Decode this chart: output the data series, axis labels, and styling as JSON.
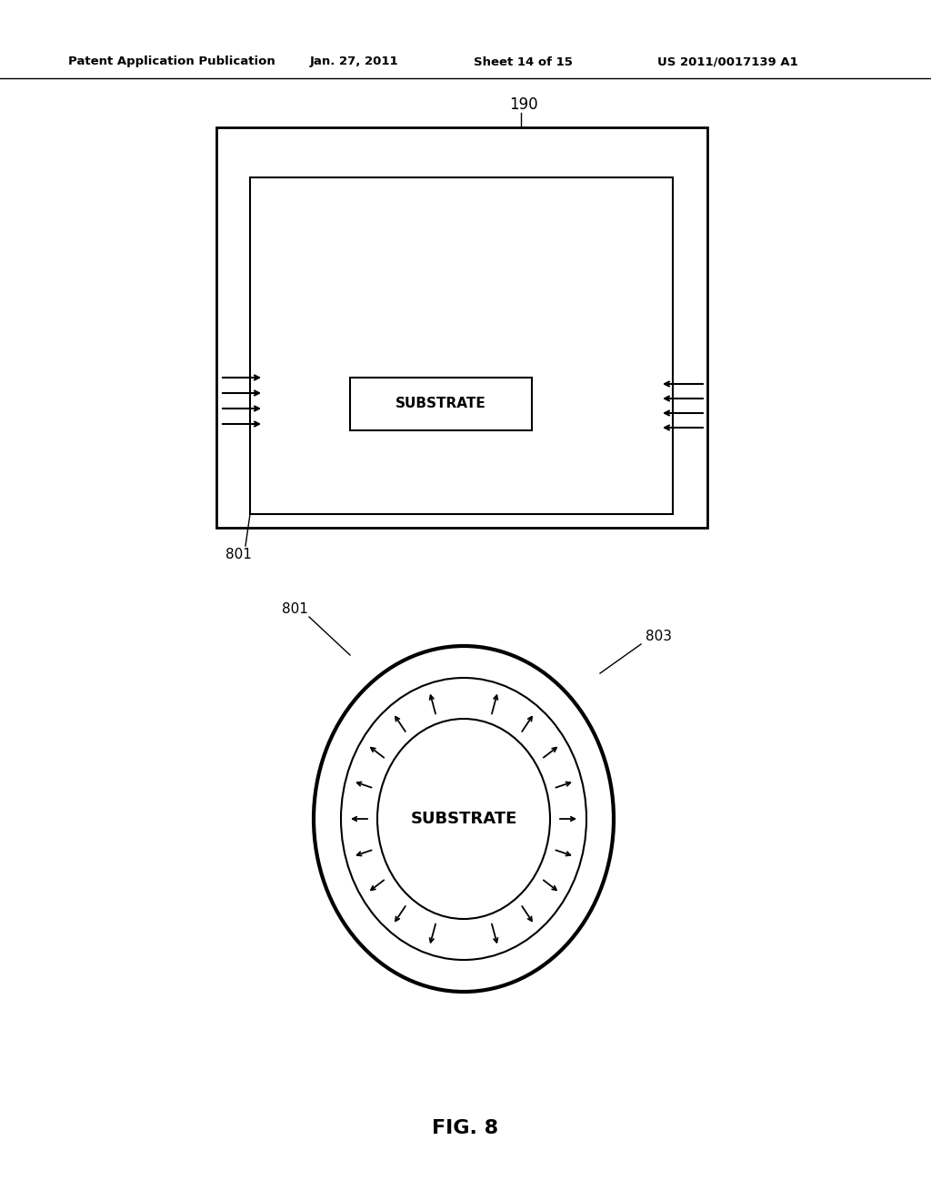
{
  "bg_color": "#ffffff",
  "header_text": "Patent Application Publication",
  "header_date": "Jan. 27, 2011",
  "header_sheet": "Sheet 14 of 15",
  "header_patent": "US 2011/0017139 A1",
  "fig_label": "FIG. 8",
  "label_190": "190",
  "label_801": "801",
  "label_803": "803",
  "substrate_text": "SUBSTRATE",
  "line_color": "#000000",
  "arrow_color": "#000000",
  "text_color": "#000000"
}
